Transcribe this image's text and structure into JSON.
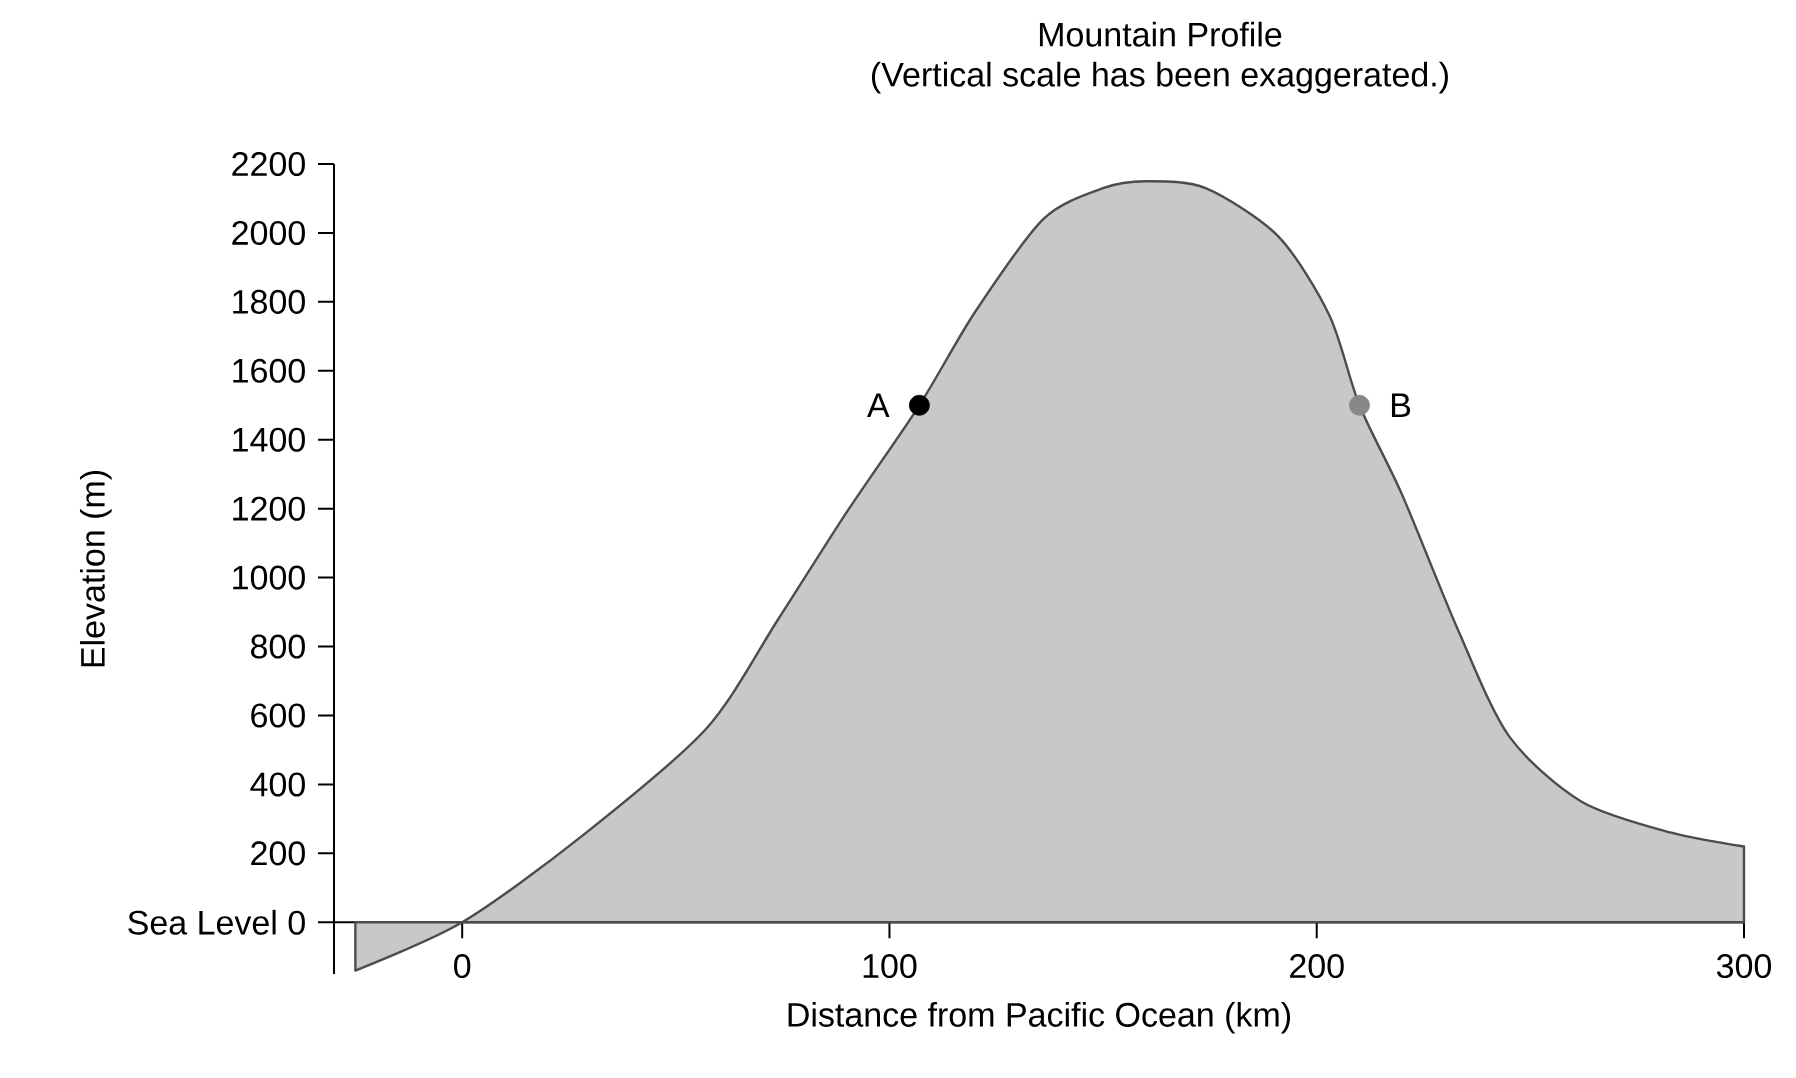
{
  "chart_data": {
    "type": "area",
    "title": "Mountain Profile",
    "subtitle": "(Vertical scale has been exaggerated.)",
    "xlabel": "Distance from  Pacific Ocean (km)",
    "ylabel": "Elevation (m)",
    "series": [
      {
        "color": "#c8c8c8",
        "x": [
          -25,
          0,
          28,
          57,
          74,
          90,
          107,
          120,
          136,
          150,
          160,
          174,
          191,
          203,
          210,
          220,
          233,
          245,
          262,
          283,
          300
        ],
        "values": [
          -140,
          0,
          250,
          560,
          880,
          1190,
          1500,
          1770,
          2040,
          2130,
          2150,
          2130,
          1990,
          1760,
          1500,
          1240,
          850,
          540,
          350,
          260,
          220
        ]
      },
      {
        "type": "scatter",
        "colors": [
          "#000000",
          "#888888"
        ],
        "x": [
          107,
          210
        ],
        "values": [
          1500,
          1500
        ]
      }
    ],
    "annotations": [
      {
        "text": "A",
        "x": 107,
        "y": 1500
      },
      {
        "text": "B",
        "x": 210,
        "y": 1500
      }
    ],
    "xlim": [
      -30,
      300
    ],
    "ylim": [
      -150,
      2200
    ],
    "xticks": [
      0,
      100,
      200,
      300
    ],
    "yticks": [
      {
        "value": 0,
        "label": "Sea Level 0"
      },
      200,
      400,
      600,
      800,
      1000,
      1200,
      1400,
      1600,
      1800,
      2000,
      2200
    ],
    "grid": false
  }
}
